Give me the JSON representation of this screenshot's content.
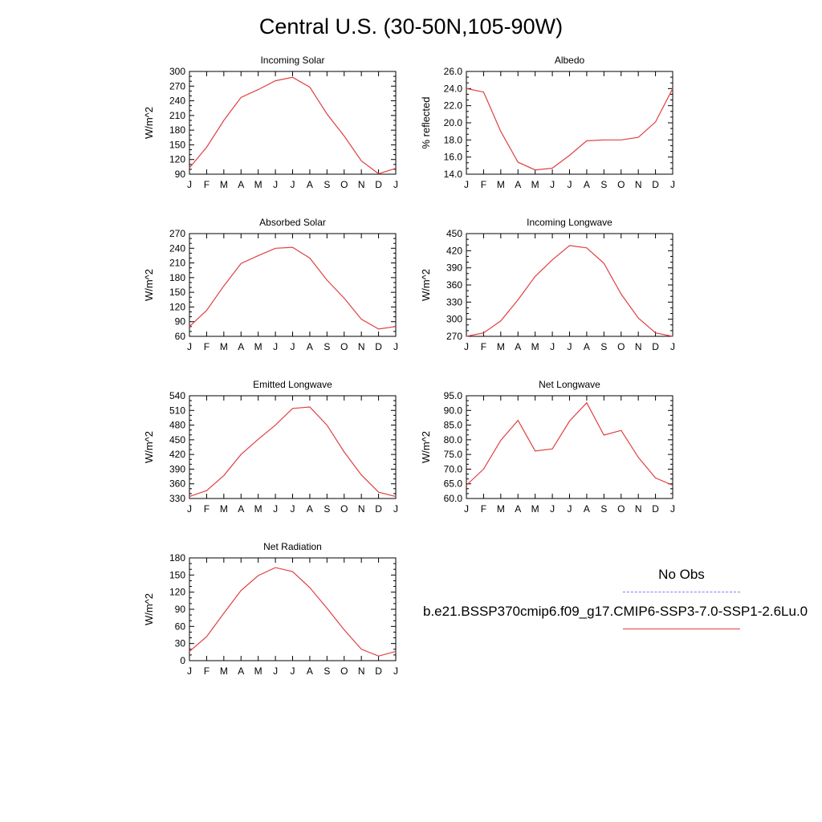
{
  "title": "Central U.S. (30-50N,105-90W)",
  "legend": {
    "obs_label": "No Obs",
    "model_label": "b.e21.BSSP370cmip6.f09_g17.CMIP6-SSP3-7.0-SSP1-2.6Lu.0",
    "obs_color": "#8080ff",
    "model_color": "#e04040"
  },
  "chart_data": [
    {
      "type": "line",
      "title": "Incoming Solar",
      "ylabel": "W/m^2",
      "categories": [
        "J",
        "F",
        "M",
        "A",
        "M",
        "J",
        "J",
        "A",
        "S",
        "O",
        "N",
        "D",
        "J"
      ],
      "ylim": [
        90,
        300
      ],
      "yticks": [
        "90",
        "120",
        "150",
        "180",
        "210",
        "240",
        "270",
        "300"
      ],
      "series": [
        {
          "values": [
            103,
            145,
            200,
            247,
            263,
            281,
            288,
            268,
            213,
            168,
            117,
            91,
            102
          ]
        }
      ]
    },
    {
      "type": "line",
      "title": "Albedo",
      "ylabel": "% reflected",
      "categories": [
        "J",
        "F",
        "M",
        "A",
        "M",
        "J",
        "J",
        "A",
        "S",
        "O",
        "N",
        "D",
        "J"
      ],
      "ylim": [
        14.0,
        26.0
      ],
      "yticks": [
        "14.0",
        "16.0",
        "18.0",
        "20.0",
        "22.0",
        "24.0",
        "26.0"
      ],
      "series": [
        {
          "values": [
            24.0,
            23.6,
            19.0,
            15.4,
            14.5,
            14.7,
            16.2,
            17.9,
            18.0,
            18.0,
            18.3,
            20.1,
            24.0
          ]
        }
      ]
    },
    {
      "type": "line",
      "title": "Absorbed Solar",
      "ylabel": "W/m^2",
      "categories": [
        "J",
        "F",
        "M",
        "A",
        "M",
        "J",
        "J",
        "A",
        "S",
        "O",
        "N",
        "D",
        "J"
      ],
      "ylim": [
        60,
        270
      ],
      "yticks": [
        "60",
        "90",
        "120",
        "150",
        "180",
        "210",
        "240",
        "270"
      ],
      "series": [
        {
          "values": [
            80,
            113,
            163,
            209,
            225,
            240,
            242,
            220,
            175,
            138,
            95,
            75,
            80
          ]
        }
      ]
    },
    {
      "type": "line",
      "title": "Incoming Longwave",
      "ylabel": "W/m^2",
      "categories": [
        "J",
        "F",
        "M",
        "A",
        "M",
        "J",
        "J",
        "A",
        "S",
        "O",
        "N",
        "D",
        "J"
      ],
      "ylim": [
        270,
        450
      ],
      "yticks": [
        "270",
        "300",
        "330",
        "360",
        "390",
        "420",
        "450"
      ],
      "series": [
        {
          "values": [
            270,
            276,
            297,
            334,
            375,
            404,
            429,
            425,
            398,
            344,
            302,
            276,
            270
          ]
        }
      ]
    },
    {
      "type": "line",
      "title": "Emitted Longwave",
      "ylabel": "W/m^2",
      "categories": [
        "J",
        "F",
        "M",
        "A",
        "M",
        "J",
        "J",
        "A",
        "S",
        "O",
        "N",
        "D",
        "J"
      ],
      "ylim": [
        330,
        540
      ],
      "yticks": [
        "330",
        "360",
        "390",
        "420",
        "450",
        "480",
        "510",
        "540"
      ],
      "series": [
        {
          "values": [
            334,
            346,
            377,
            420,
            451,
            480,
            514,
            517,
            480,
            425,
            378,
            343,
            334
          ]
        }
      ]
    },
    {
      "type": "line",
      "title": "Net Longwave",
      "ylabel": "W/m^2",
      "categories": [
        "J",
        "F",
        "M",
        "A",
        "M",
        "J",
        "J",
        "A",
        "S",
        "O",
        "N",
        "D",
        "J"
      ],
      "ylim": [
        60.0,
        95.0
      ],
      "yticks": [
        "60.0",
        "65.0",
        "70.0",
        "75.0",
        "80.0",
        "85.0",
        "90.0",
        "95.0"
      ],
      "series": [
        {
          "values": [
            64.5,
            70.0,
            79.8,
            86.6,
            76.2,
            76.9,
            86.4,
            92.6,
            81.6,
            83.2,
            74.0,
            67.0,
            64.5
          ]
        }
      ]
    },
    {
      "type": "line",
      "title": "Net Radiation",
      "ylabel": "W/m^2",
      "categories": [
        "J",
        "F",
        "M",
        "A",
        "M",
        "J",
        "J",
        "A",
        "S",
        "O",
        "N",
        "D",
        "J"
      ],
      "ylim": [
        0,
        180
      ],
      "yticks": [
        "0",
        "30",
        "60",
        "90",
        "120",
        "150",
        "180"
      ],
      "series": [
        {
          "values": [
            16,
            42,
            83,
            123,
            149,
            163,
            156,
            128,
            92,
            54,
            20,
            8,
            16
          ]
        }
      ]
    }
  ]
}
